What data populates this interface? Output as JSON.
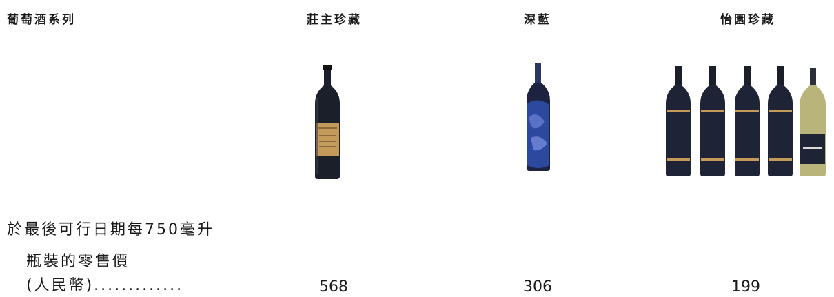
{
  "table": {
    "header_label": "葡萄酒系列",
    "columns": [
      {
        "name": "莊主珍藏",
        "price": "568"
      },
      {
        "name": "深藍",
        "price": "306"
      },
      {
        "name": "怡園珍藏",
        "price": "199"
      }
    ],
    "row_label": {
      "line1": "於最後可行日期每750毫升",
      "line2": "瓶裝的零售價",
      "line3": "(人民幣)............."
    }
  },
  "colors": {
    "rule": "#222222",
    "bottle_dark": "#1b1f2a",
    "label_gold": "#c49a5a",
    "deep_blue_label": "#2f4fb0",
    "chardonnay_glass": "#b9b47a"
  },
  "icons": [
    "wine-bottle-icon"
  ]
}
